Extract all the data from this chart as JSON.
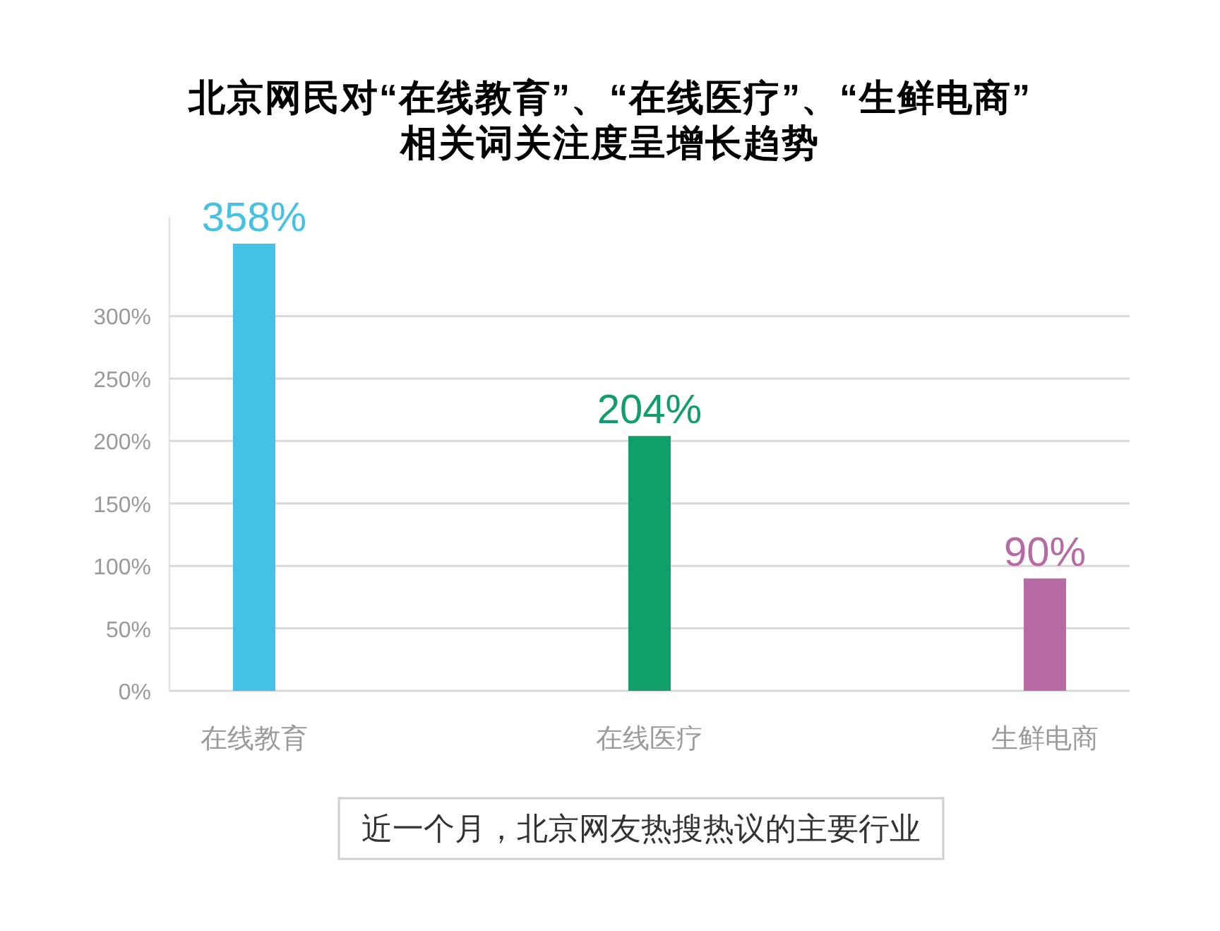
{
  "chart_data": {
    "type": "bar",
    "title": "北京网民对“在线教育”、“在线医疗”、“生鲜电商”\n相关词关注度呈增长趋势",
    "categories": [
      "在线教育",
      "在线医疗",
      "生鲜电商"
    ],
    "values": [
      358,
      204,
      90
    ],
    "colors": [
      "#45c1e6",
      "#109f6b",
      "#b86aa4"
    ],
    "value_labels": [
      "358%",
      "204%",
      "90%"
    ],
    "ylim": [
      0,
      380
    ],
    "yticks": [
      {
        "value": 0,
        "label": "0%"
      },
      {
        "value": 50,
        "label": "50%"
      },
      {
        "value": 100,
        "label": "100%"
      },
      {
        "value": 150,
        "label": "150%"
      },
      {
        "value": 200,
        "label": "200%"
      },
      {
        "value": 250,
        "label": "250%"
      },
      {
        "value": 300,
        "label": "300%"
      }
    ],
    "grid": "y",
    "annotations": [
      "近一个月，北京网友热搜热议的主要行业"
    ]
  }
}
